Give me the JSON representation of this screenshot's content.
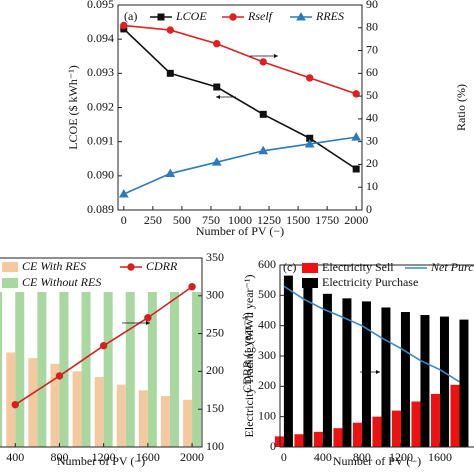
{
  "chart_data": [
    {
      "type": "line",
      "title": "(a)",
      "x_label": "Number of PV (−)",
      "y_label": "LCOE ($ kWh⁻¹)",
      "y2_label": "Ratio (%)",
      "xlim": [
        -50,
        2050
      ],
      "xticks": [
        0,
        250,
        500,
        750,
        1000,
        1250,
        1500,
        1750,
        2000
      ],
      "ylim": [
        0.089,
        0.095
      ],
      "yticks": [
        0.089,
        {
          "value": 0.09,
          "label": "0.090"
        },
        0.091,
        0.092,
        0.093,
        0.094,
        0.095
      ],
      "y2lim": [
        0,
        90
      ],
      "y2ticks": [
        0,
        10,
        20,
        30,
        40,
        50,
        60,
        70,
        80,
        90
      ],
      "x": [
        0,
        400,
        800,
        1200,
        1600,
        2000
      ],
      "series": [
        {
          "name": "LCOE",
          "color": "#111111",
          "marker": "square",
          "values": [
            0.0943,
            0.093,
            0.0926,
            0.0918,
            0.0911,
            0.0902
          ]
        },
        {
          "name": "Rself",
          "color": "#e02020",
          "marker": "circle",
          "axis": "y2",
          "values": [
            81,
            79,
            73,
            65,
            58,
            51
          ]
        },
        {
          "name": "RRES",
          "color": "#2b7bbd",
          "marker": "triangle",
          "axis": "y2",
          "values": [
            7,
            16,
            21,
            26,
            29,
            32
          ]
        }
      ]
    },
    {
      "type": "bar",
      "x_label": "Number of PV (−)",
      "y2_label": "CDRR (t year⁻¹)",
      "xlim": [
        -100,
        2090
      ],
      "xticks": [
        400,
        800,
        1200,
        1600,
        2000
      ],
      "ylim": [
        0,
        100
      ],
      "y2lim": [
        100,
        350
      ],
      "y2ticks": [
        100,
        150,
        200,
        250,
        300,
        350
      ],
      "x": [
        200,
        400,
        600,
        800,
        1000,
        1200,
        1400,
        1600,
        1800,
        2000
      ],
      "series": [
        {
          "name": "CE With RES",
          "color": "#f5c9a0",
          "values": [
            53,
            50,
            47,
            44,
            40,
            37,
            33,
            30,
            27,
            25
          ]
        },
        {
          "name": "CE Without RES",
          "color": "#a8d8a0",
          "values": [
            82,
            82,
            82,
            82,
            82,
            82,
            82,
            82,
            82,
            82
          ]
        },
        {
          "name": "CDRR",
          "color": "#d42020",
          "type": "line",
          "marker": "circle",
          "axis": "y2",
          "x": [
            400,
            800,
            1200,
            1600,
            2000
          ],
          "values": [
            156,
            194,
            234,
            271,
            312
          ]
        }
      ]
    },
    {
      "type": "bar",
      "title": "(c)",
      "x_label": "Number of PV (−)",
      "y_label": "Electricity Trading (MWh year⁻¹)",
      "xlim": [
        -40,
        2600
      ],
      "xticks": [
        0,
        400,
        800,
        1200,
        1600
      ],
      "ylim": [
        0,
        600
      ],
      "yticks": [
        0,
        100,
        200,
        300,
        400,
        500,
        600
      ],
      "x": [
        0,
        200,
        400,
        600,
        800,
        1000,
        1200,
        1400,
        1600,
        1800
      ],
      "series": [
        {
          "name": "Electricity Sell",
          "color": "#ee1111",
          "values": [
            35,
            42,
            50,
            62,
            80,
            100,
            120,
            150,
            175,
            205
          ]
        },
        {
          "name": "Electricity Purchase",
          "color": "#000000",
          "values": [
            565,
            530,
            505,
            490,
            480,
            460,
            445,
            435,
            430,
            420
          ]
        },
        {
          "name": "Net Purchase",
          "color": "#3a88c8",
          "type": "line",
          "values": [
            530,
            488,
            455,
            428,
            400,
            360,
            325,
            285,
            255,
            215
          ]
        }
      ]
    }
  ]
}
